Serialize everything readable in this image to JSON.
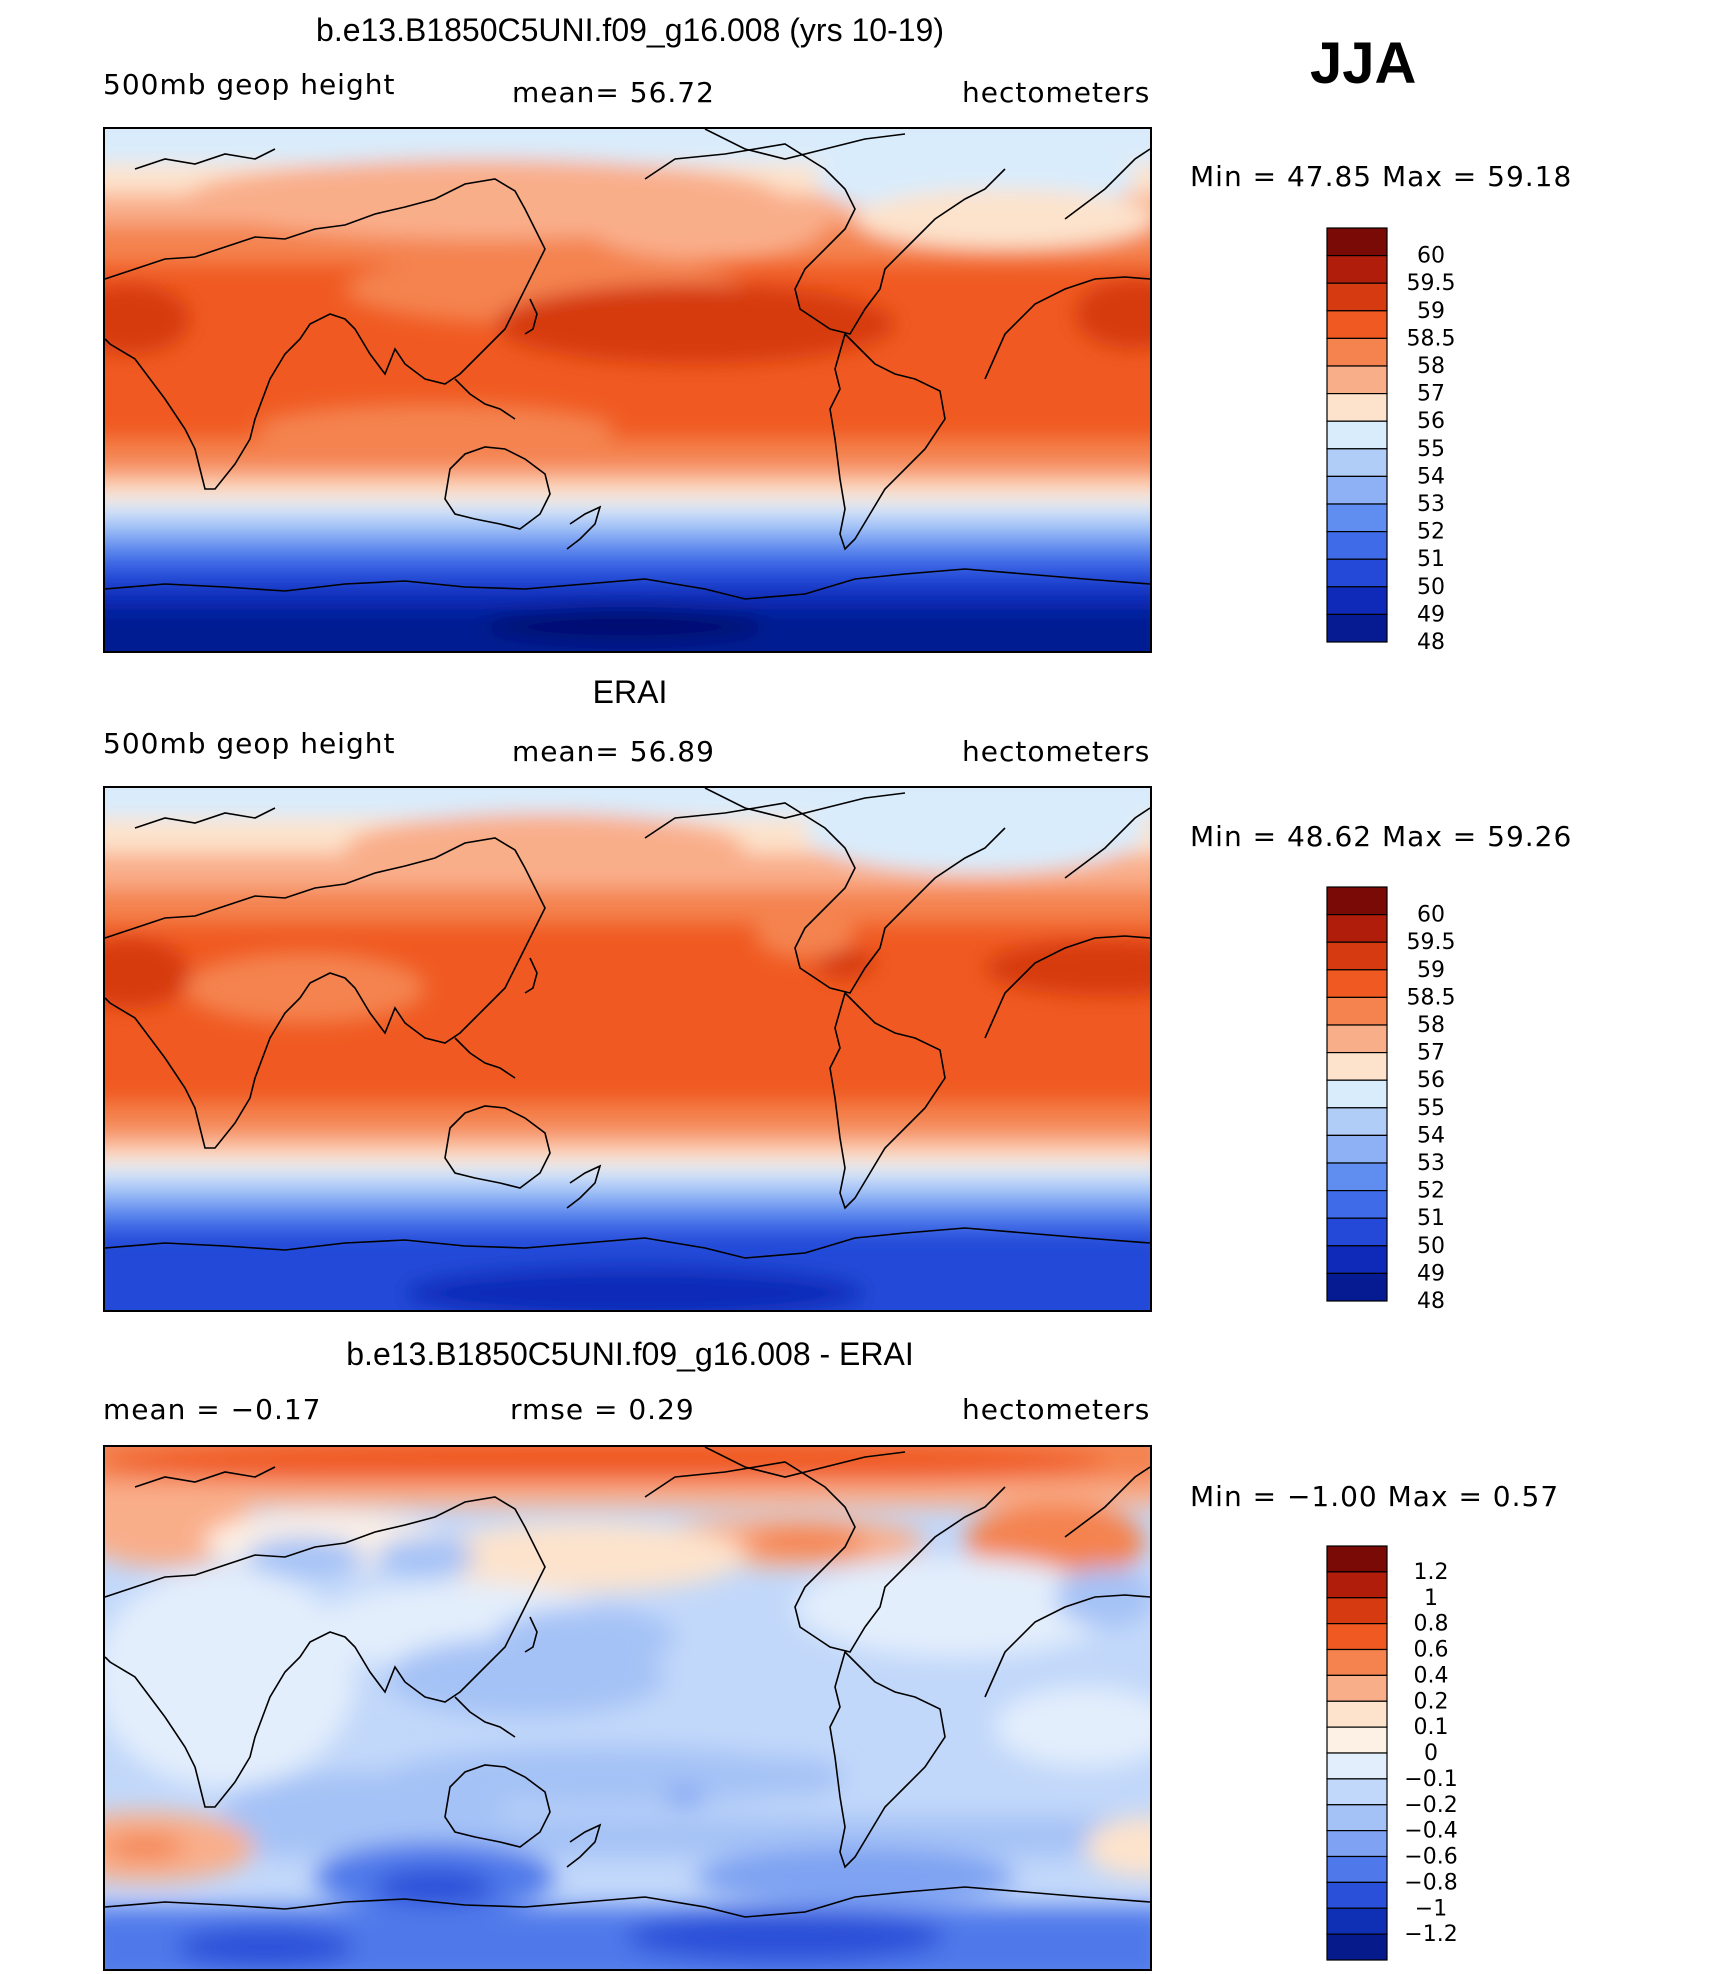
{
  "season": "JJA",
  "panels": [
    {
      "title": "b.e13.B1850C5UNI.f09_g16.008 (yrs 10-19)",
      "left_label": "500mb  geop  height",
      "center_label": "mean=   56.72",
      "right_label": "hectometers",
      "minmax": "Min  =    47.85  Max  =    59.18",
      "colorbar": {
        "colors": [
          "#7a0a06",
          "#b01d0a",
          "#d63a10",
          "#f05a22",
          "#f4834f",
          "#f9ae8a",
          "#fde3cc",
          "#d9ecfc",
          "#b0cdf8",
          "#8db1f4",
          "#5f8ef0",
          "#3f6be8",
          "#2448d8",
          "#0f2ab8",
          "#061a92"
        ],
        "labels": [
          "60",
          "59.5",
          "59",
          "58.5",
          "58",
          "57",
          "56",
          "55",
          "54",
          "53",
          "52",
          "51",
          "50",
          "49",
          "48"
        ]
      }
    },
    {
      "title": "ERAI",
      "left_label": "500mb  geop  height",
      "center_label": "mean=   56.89",
      "right_label": "hectometers",
      "minmax": "Min  =    48.62  Max  =    59.26",
      "colorbar": {
        "colors": [
          "#7a0a06",
          "#b01d0a",
          "#d63a10",
          "#f05a22",
          "#f4834f",
          "#f9ae8a",
          "#fde3cc",
          "#d9ecfc",
          "#b0cdf8",
          "#8db1f4",
          "#5f8ef0",
          "#3f6be8",
          "#2448d8",
          "#0f2ab8",
          "#061a92"
        ],
        "labels": [
          "60",
          "59.5",
          "59",
          "58.5",
          "58",
          "57",
          "56",
          "55",
          "54",
          "53",
          "52",
          "51",
          "50",
          "49",
          "48"
        ]
      }
    },
    {
      "title": "b.e13.B1850C5UNI.f09_g16.008 - ERAI",
      "left_label": "mean  =    −0.17",
      "center_label": "rmse  =     0.29",
      "right_label": "hectometers",
      "minmax": "Min  =   −1.00  Max  =     0.57",
      "colorbar": {
        "colors": [
          "#7a0a06",
          "#b01d0a",
          "#d63a10",
          "#f05a22",
          "#f4834f",
          "#f9ae8a",
          "#fde3cc",
          "#fdf1e6",
          "#e3eefc",
          "#c2d8fa",
          "#a5c2f6",
          "#7fa3f2",
          "#4f79ea",
          "#2a4fd8",
          "#0f2fb4",
          "#061a8c"
        ],
        "labels": [
          "1.2",
          "1",
          "0.8",
          "0.6",
          "0.4",
          "0.2",
          "0.1",
          "0",
          "−0.1",
          "−0.2",
          "−0.4",
          "−0.6",
          "−0.8",
          "−1",
          "−1.2"
        ]
      }
    }
  ]
}
